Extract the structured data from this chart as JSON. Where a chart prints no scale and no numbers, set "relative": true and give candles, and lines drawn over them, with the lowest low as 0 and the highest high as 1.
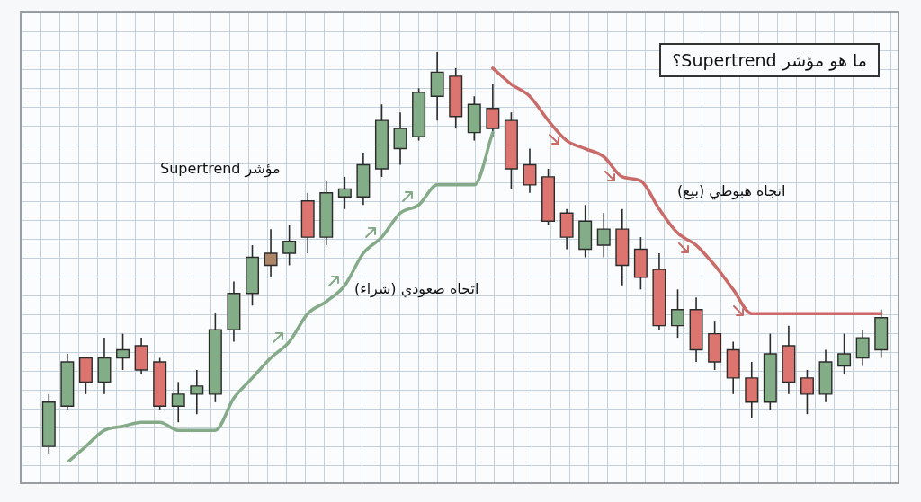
{
  "chart_data": {
    "type": "candlestick",
    "relative": true,
    "title": "ما هو مؤشر Supertrend؟",
    "annotations": [
      "مؤشر Supertrend"
    ],
    "tick_labels": false,
    "categories": [
      null,
      null,
      null,
      null,
      null,
      null,
      null,
      null,
      null,
      null,
      null,
      null,
      null,
      null,
      null,
      null,
      null,
      null,
      null,
      null,
      null,
      null,
      null,
      null,
      null,
      null,
      null,
      null,
      null,
      null,
      null,
      null,
      null,
      null,
      null,
      null,
      null,
      null,
      null,
      null,
      null,
      null,
      null,
      null,
      null,
      null
    ],
    "ohlc": [
      [
        0.02,
        0.15,
        0,
        0.13
      ],
      [
        0.12,
        0.25,
        0.11,
        0.23
      ],
      [
        0.24,
        0.24,
        0.15,
        0.18
      ],
      [
        0.18,
        0.29,
        0.15,
        0.24
      ],
      [
        0.24,
        0.3,
        0.21,
        0.26
      ],
      [
        0.27,
        0.29,
        0.2,
        0.21
      ],
      [
        0.23,
        0.24,
        0.11,
        0.12
      ],
      [
        0.12,
        0.18,
        0.08,
        0.15
      ],
      [
        0.15,
        0.21,
        0.1,
        0.17
      ],
      [
        0.15,
        0.35,
        0.13,
        0.31
      ],
      [
        0.31,
        0.43,
        0.28,
        0.4
      ],
      [
        0.4,
        0.52,
        0.37,
        0.49
      ],
      [
        0.5,
        0.56,
        0.44,
        0.47
      ],
      [
        0.5,
        0.57,
        0.47,
        0.53
      ],
      [
        0.63,
        0.65,
        0.5,
        0.54
      ],
      [
        0.54,
        0.68,
        0.52,
        0.65
      ],
      [
        0.64,
        0.69,
        0.61,
        0.66
      ],
      [
        0.64,
        0.75,
        0.62,
        0.72
      ],
      [
        0.71,
        0.87,
        0.69,
        0.83
      ],
      [
        0.76,
        0.85,
        0.72,
        0.81
      ],
      [
        0.79,
        0.91,
        0.78,
        0.9
      ],
      [
        0.89,
        1,
        0.83,
        0.95
      ],
      [
        0.94,
        0.96,
        0.81,
        0.84
      ],
      [
        0.8,
        0.89,
        0.78,
        0.87
      ],
      [
        0.86,
        0.92,
        0.79,
        0.81
      ],
      [
        0.83,
        0.85,
        0.66,
        0.71
      ],
      [
        0.72,
        0.76,
        0.65,
        0.67
      ],
      [
        0.69,
        0.71,
        0.57,
        0.58
      ],
      [
        0.6,
        0.61,
        0.51,
        0.54
      ],
      [
        0.51,
        0.62,
        0.49,
        0.58
      ],
      [
        0.52,
        0.6,
        0.49,
        0.56
      ],
      [
        0.56,
        0.61,
        0.42,
        0.47
      ],
      [
        0.51,
        0.54,
        0.41,
        0.44
      ],
      [
        0.46,
        0.5,
        0.31,
        0.32
      ],
      [
        0.32,
        0.41,
        0.29,
        0.36
      ],
      [
        0.36,
        0.39,
        0.23,
        0.26
      ],
      [
        0.3,
        0.33,
        0.21,
        0.23
      ],
      [
        0.26,
        0.28,
        0.15,
        0.19
      ],
      [
        0.19,
        0.23,
        0.09,
        0.13
      ],
      [
        0.13,
        0.3,
        0.11,
        0.25
      ],
      [
        0.27,
        0.32,
        0.15,
        0.18
      ],
      [
        0.19,
        0.21,
        0.1,
        0.15
      ],
      [
        0.15,
        0.26,
        0.13,
        0.23
      ],
      [
        0.22,
        0.3,
        0.2,
        0.25
      ],
      [
        0.24,
        0.31,
        0.22,
        0.29
      ],
      [
        0.26,
        0.36,
        0.24,
        0.34
      ]
    ],
    "colors": [
      "#82ad86",
      "#82ad86",
      "#dc7470",
      "#82ad86",
      "#82ad86",
      "#dc7470",
      "#dc7470",
      "#82ad86",
      "#82ad86",
      "#82ad86",
      "#82ad86",
      "#82ad86",
      "#ad8567",
      "#82ad86",
      "#dc7470",
      "#82ad86",
      "#82ad86",
      "#82ad86",
      "#82ad86",
      "#82ad86",
      "#82ad86",
      "#82ad86",
      "#dc7470",
      "#82ad86",
      "#dc7470",
      "#dc7470",
      "#dc7470",
      "#dc7470",
      "#dc7470",
      "#82ad86",
      "#82ad86",
      "#dc7470",
      "#dc7470",
      "#dc7470",
      "#82ad86",
      "#dc7470",
      "#dc7470",
      "#dc7470",
      "#dc7470",
      "#82ad86",
      "#dc7470",
      "#dc7470",
      "#82ad86",
      "#82ad86",
      "#82ad86",
      "#82ad86"
    ],
    "series": [
      {
        "type": "line",
        "name": "اتجاه صعودي (شراء)",
        "color": "#84aa88",
        "values": [
          null,
          -0.02,
          0.02,
          0.06,
          0.07,
          0.08,
          0.08,
          0.06,
          0.06,
          0.06,
          0.14,
          0.19,
          0.24,
          0.28,
          0.35,
          0.38,
          0.42,
          0.5,
          0.54,
          0.6,
          0.62,
          0.67,
          0.67,
          0.67,
          0.8,
          null,
          null,
          null,
          null,
          null,
          null,
          null,
          null,
          null,
          null,
          null,
          null,
          null,
          null,
          null,
          null,
          null,
          null,
          null,
          null,
          null
        ]
      },
      {
        "type": "line",
        "name": "اتجاه هبوطي (بيع)",
        "color": "#c96b68",
        "values": [
          null,
          null,
          null,
          null,
          null,
          null,
          null,
          null,
          null,
          null,
          null,
          null,
          null,
          null,
          null,
          null,
          null,
          null,
          null,
          null,
          null,
          null,
          null,
          null,
          0.96,
          0.92,
          0.89,
          0.83,
          0.78,
          0.76,
          0.74,
          0.69,
          0.68,
          0.61,
          0.55,
          0.52,
          0.47,
          0.41,
          0.35,
          0.35,
          0.35,
          0.35,
          0.35,
          0.35,
          0.35,
          0.35
        ]
      }
    ]
  }
}
